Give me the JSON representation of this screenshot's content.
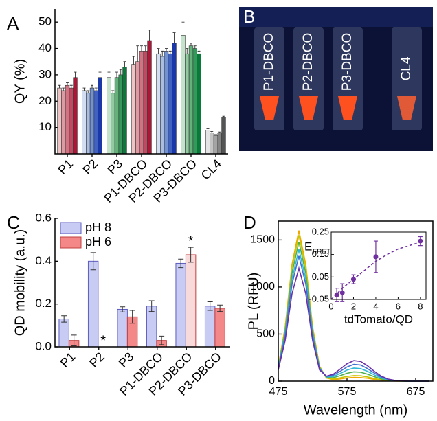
{
  "chart_data": [
    {
      "type": "grouped-bar",
      "panel": "A",
      "ylabel": "QY (%)",
      "categories": [
        "P1",
        "P2",
        "P3",
        "P1-DBCO",
        "P2-DBCO",
        "P3-DBCO",
        "CL4"
      ],
      "groups": [
        {
          "colors": [
            "#eec4c4",
            "#dc9aa2",
            "#d07484",
            "#c04a62",
            "#b01436"
          ],
          "values": [
            25,
            24,
            26,
            25,
            29
          ],
          "errors": [
            1,
            1,
            1,
            1,
            2
          ]
        },
        {
          "colors": [
            "#d4def2",
            "#aabee2",
            "#7292d2",
            "#4262c2",
            "#1a38a8"
          ],
          "values": [
            24,
            23,
            25,
            24,
            29
          ],
          "errors": [
            1,
            1,
            1,
            1,
            2
          ]
        },
        {
          "colors": [
            "#c4e2cc",
            "#92caa2",
            "#62b27a",
            "#329a5a",
            "#0a7a3a"
          ],
          "values": [
            29,
            23,
            29,
            30,
            33
          ],
          "errors": [
            2,
            1,
            2,
            2,
            2
          ]
        },
        {
          "colors": [
            "#eec4c4",
            "#dc9aa2",
            "#d07484",
            "#c04a62",
            "#b01436"
          ],
          "values": [
            34,
            35,
            39,
            39,
            43
          ],
          "errors": [
            3,
            6,
            2,
            2,
            4
          ]
        },
        {
          "colors": [
            "#d4def2",
            "#aabee2",
            "#7292d2",
            "#4262c2",
            "#1a38a8"
          ],
          "values": [
            38,
            37,
            39,
            38,
            42
          ],
          "errors": [
            2,
            2,
            1,
            1,
            4
          ]
        },
        {
          "colors": [
            "#c4e2cc",
            "#92caa2",
            "#62b27a",
            "#329a5a",
            "#0a7a3a"
          ],
          "values": [
            45,
            38,
            41,
            40,
            38
          ],
          "errors": [
            5,
            2,
            1,
            1,
            1
          ]
        },
        {
          "colors": [
            "#e4e4e4",
            "#c4c4c4",
            "#a4a4a4",
            "#848484",
            "#545454"
          ],
          "values": [
            9,
            8,
            7,
            8,
            14
          ],
          "errors": [
            0.5,
            0.5,
            0.3,
            0.3,
            0.3
          ]
        }
      ],
      "ylim": [
        0,
        55
      ],
      "yticks": [
        10,
        20,
        30,
        40,
        50
      ]
    },
    {
      "type": "photo",
      "panel": "B",
      "labels": [
        "P1-DBCO",
        "P2-DBCO",
        "P3-DBCO",
        "CL4"
      ]
    },
    {
      "type": "bar",
      "panel": "C",
      "ylabel": "QD mobility (a.u.)",
      "categories": [
        "P1",
        "P2",
        "P3",
        "P1-DBCO",
        "P2-DBCO",
        "P3-DBCO"
      ],
      "series": [
        {
          "name": "pH 8",
          "color": "#c8ccf4",
          "stroke": "#5c5cc0",
          "values": [
            0.13,
            0.4,
            0.175,
            0.19,
            0.39,
            0.19
          ],
          "errors": [
            0.015,
            0.04,
            0.012,
            0.025,
            0.02,
            0.02
          ]
        },
        {
          "name": "pH 6",
          "color": "#f48888",
          "stroke": "#c04040",
          "colors": [
            "#f48888",
            "#f48888",
            "#f48888",
            "#f48888",
            "#f8dada",
            "#f48888"
          ],
          "values": [
            0.03,
            null,
            0.14,
            0.03,
            0.43,
            0.18
          ],
          "errors": [
            0.025,
            null,
            0.03,
            0.02,
            0.035,
            0.015
          ]
        }
      ],
      "annotations": [
        {
          "text": "*",
          "category": 1,
          "series": 1
        },
        {
          "text": "*",
          "category": 4,
          "series": 1
        }
      ],
      "ylim": [
        0,
        0.6
      ],
      "yticks": [
        {
          "value": 0,
          "label": "0.0"
        },
        {
          "value": 0.2,
          "label": "0.2"
        },
        {
          "value": 0.4,
          "label": "0.4"
        },
        {
          "value": 0.6,
          "label": "0.6"
        }
      ],
      "legend": "top-left"
    },
    {
      "type": "line",
      "panel": "D",
      "xlabel": "Wavelength (nm)",
      "ylabel": "PL (RFU)",
      "x": [
        475,
        485,
        495,
        505,
        515,
        525,
        535,
        545,
        555,
        565,
        575,
        585,
        595,
        605,
        615,
        625,
        635,
        645,
        655,
        665,
        675,
        685,
        695
      ],
      "lines": [
        {
          "color": "#f0a800",
          "values": [
            160,
            576,
            1240,
            1600,
            1240,
            576,
            160,
            33,
            16,
            23,
            34,
            40,
            38,
            30,
            19,
            10,
            4,
            1,
            0,
            0,
            0,
            0,
            0
          ]
        },
        {
          "color": "#c8c800",
          "values": [
            155,
            558,
            1201,
            1550,
            1201,
            558,
            155,
            35,
            23,
            35,
            50,
            59,
            57,
            44,
            28,
            14,
            6,
            2,
            1,
            0,
            0,
            0,
            0
          ]
        },
        {
          "color": "#50b050",
          "values": [
            148,
            533,
            1147,
            1480,
            1147,
            533,
            148,
            40,
            36,
            58,
            84,
            99,
            95,
            74,
            47,
            24,
            10,
            4,
            1,
            0,
            0,
            0,
            0
          ]
        },
        {
          "color": "#30b8d8",
          "values": [
            140,
            504,
            1085,
            1400,
            1085,
            504,
            140,
            45,
            49,
            81,
            118,
            139,
            133,
            104,
            66,
            34,
            14,
            5,
            1,
            0,
            0,
            0,
            0
          ]
        },
        {
          "color": "#4070d0",
          "values": [
            133,
            479,
            1031,
            1330,
            1031,
            479,
            133,
            50,
            62,
            104,
            151,
            178,
            171,
            133,
            85,
            43,
            18,
            6,
            2,
            0,
            0,
            0,
            0
          ]
        },
        {
          "color": "#6a30a8",
          "values": [
            120,
            432,
            930,
            1200,
            930,
            432,
            120,
            53,
            74,
            128,
            185,
            218,
            209,
            163,
            103,
            53,
            22,
            8,
            2,
            0,
            0,
            0,
            0
          ]
        }
      ],
      "xlim": [
        475,
        700
      ],
      "xticks": [
        475,
        575,
        675
      ],
      "ylim": [
        0,
        1700
      ],
      "yticks": [
        0,
        500,
        1000,
        1500
      ],
      "inset": {
        "type": "scatter",
        "xlabel": "tdTomato/QD",
        "ylabel": "E",
        "ylabel_sub": "FRET",
        "color": "#7030a0",
        "x": [
          0.5,
          1,
          2,
          4,
          8
        ],
        "y": [
          -0.03,
          -0.02,
          0.04,
          0.14,
          0.21
        ],
        "errors": [
          0.03,
          0.04,
          0.02,
          0.07,
          0.02
        ],
        "fit": {
          "x": [
            0,
            1,
            2,
            3,
            4,
            5,
            6,
            7,
            8
          ],
          "y": [
            -0.05,
            0.0,
            0.04,
            0.08,
            0.12,
            0.15,
            0.175,
            0.19,
            0.205
          ]
        },
        "xlim": [
          0,
          8.5
        ],
        "xticks": [
          0,
          2,
          4,
          6,
          8
        ],
        "ylim": [
          -0.05,
          0.25
        ],
        "yticks": [
          -0.05,
          0.05,
          0.15,
          0.25
        ]
      }
    }
  ]
}
